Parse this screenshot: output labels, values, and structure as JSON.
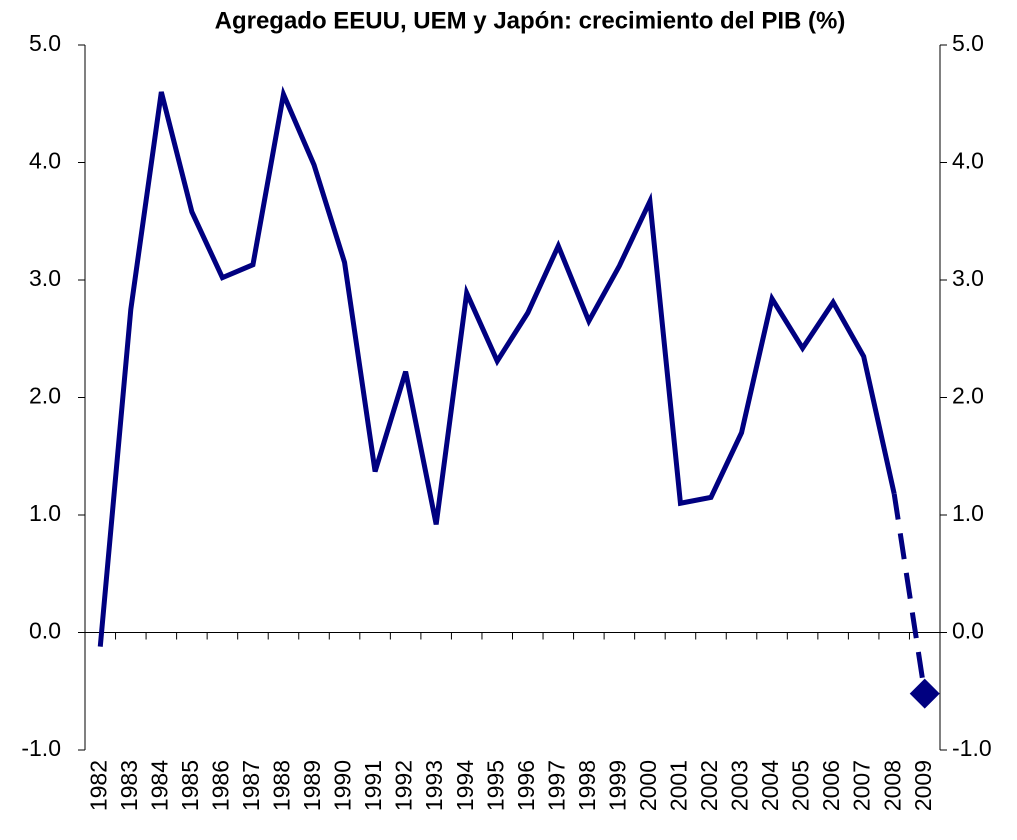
{
  "chart_data": {
    "type": "line",
    "title": "Agregado EEUU, UEM y Japón: crecimiento del PIB (%)",
    "categories": [
      "1982",
      "1983",
      "1984",
      "1985",
      "1986",
      "1987",
      "1988",
      "1989",
      "1990",
      "1991",
      "1992",
      "1993",
      "1994",
      "1995",
      "1996",
      "1997",
      "1998",
      "1999",
      "2000",
      "2001",
      "2002",
      "2003",
      "2004",
      "2005",
      "2006",
      "2007",
      "2008",
      "2009"
    ],
    "values": [
      -0.12,
      2.75,
      4.6,
      3.58,
      3.02,
      3.13,
      4.58,
      3.98,
      3.15,
      1.37,
      2.22,
      0.92,
      2.89,
      2.31,
      2.72,
      3.29,
      2.65,
      3.12,
      3.67,
      1.1,
      1.15,
      1.7,
      2.84,
      2.42,
      2.81,
      2.35,
      1.18,
      -0.52
    ],
    "color": "#000080",
    "dashed_last_segment": true,
    "last_marker": "diamond",
    "ylim": [
      -1,
      5
    ],
    "yticks": [
      {
        "value": -1,
        "label": "-1.0"
      },
      {
        "value": 0,
        "label": "0.0"
      },
      {
        "value": 1,
        "label": "1.0"
      },
      {
        "value": 2,
        "label": "2.0"
      },
      {
        "value": 3,
        "label": "3.0"
      },
      {
        "value": 4,
        "label": "4.0"
      },
      {
        "value": 5,
        "label": "5.0"
      }
    ],
    "y2lim": [
      -1,
      5
    ],
    "y2ticks": [
      {
        "value": -1,
        "label": "-1.0"
      },
      {
        "value": 0,
        "label": "0.0"
      },
      {
        "value": 1,
        "label": "1.0"
      },
      {
        "value": 2,
        "label": "2.0"
      },
      {
        "value": 3,
        "label": "3.0"
      },
      {
        "value": 4,
        "label": "4.0"
      },
      {
        "value": 5,
        "label": "5.0"
      }
    ],
    "grid": false
  }
}
